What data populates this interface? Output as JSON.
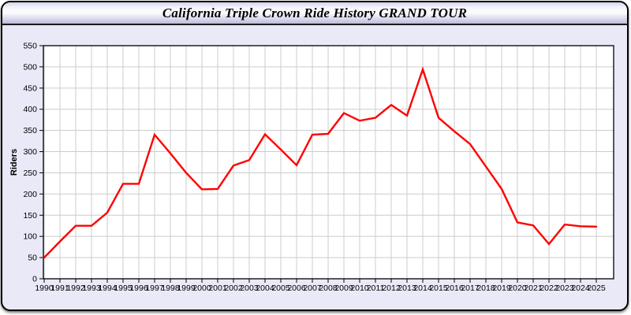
{
  "header": {
    "title": "California Triple Crown Ride History GRAND TOUR"
  },
  "colors": {
    "line_red": "#ff0000",
    "panel_background": "#e9e9f8",
    "plot_background": "#ffffff",
    "gridline": "#cccccc",
    "axis": "#000000"
  },
  "chart_data": {
    "type": "line",
    "title": "California Triple Crown Ride History GRAND TOUR",
    "xlabel": "",
    "ylabel": "Riders",
    "x": [
      1990,
      1991,
      1992,
      1993,
      1994,
      1995,
      1996,
      1997,
      1998,
      1999,
      2000,
      2001,
      2002,
      2003,
      2004,
      2005,
      2006,
      2007,
      2008,
      2009,
      2010,
      2011,
      2012,
      2013,
      2014,
      2015,
      2016,
      2017,
      2018,
      2019,
      2020,
      2021,
      2022,
      2023,
      2024,
      2025
    ],
    "values": [
      50,
      88,
      125,
      125,
      156,
      224,
      224,
      340,
      296,
      250,
      211,
      212,
      267,
      280,
      341,
      305,
      268,
      340,
      342,
      391,
      373,
      380,
      410,
      385,
      494,
      380,
      348,
      318,
      265,
      212,
      133,
      126,
      82,
      128,
      124,
      123
    ],
    "ylim": [
      0,
      550
    ],
    "ytick_step": 50,
    "yticks": [
      0,
      50,
      100,
      150,
      200,
      250,
      300,
      350,
      400,
      450,
      500,
      550
    ],
    "grid": true,
    "legend_position": "none",
    "line_color": "#ff0000",
    "marker": "none"
  }
}
